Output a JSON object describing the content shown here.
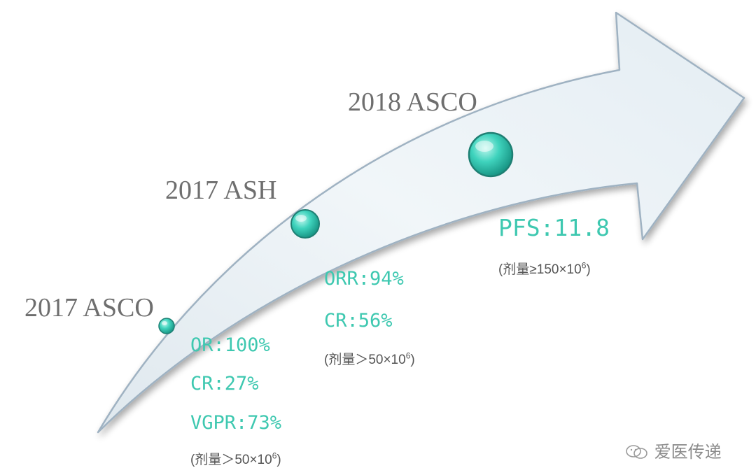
{
  "milestones": [
    {
      "event": "2017 ASCO",
      "metrics": [
        "OR:100%",
        "CR:27%",
        "VGPR:73%"
      ],
      "dose": {
        "text": "(剂量＞50×10",
        "sup": "6",
        "close": ")"
      }
    },
    {
      "event": "2017 ASH",
      "metrics": [
        "ORR:94%",
        "CR:56%"
      ],
      "dose": {
        "text": "(剂量＞50×10",
        "sup": "6",
        "close": ")"
      }
    },
    {
      "event": "2018 ASCO",
      "metrics": [
        "PFS:11.8"
      ],
      "dose": {
        "text": "(剂量≥150×10",
        "sup": "6",
        "close": ")"
      }
    }
  ],
  "watermark": {
    "text": "爱医传递",
    "icon": "wechat-icon"
  },
  "colors": {
    "accent": "#3ec8b0",
    "label": "#6e6e6e",
    "arrow_fill": "#eef4f8",
    "arrow_stroke": "#9fb2c2"
  }
}
